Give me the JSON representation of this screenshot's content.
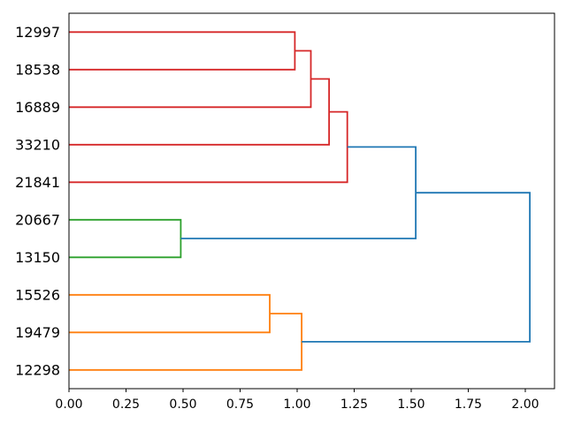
{
  "figure": {
    "background": "#ffffff",
    "border_color": "#000000"
  },
  "chart_data": {
    "type": "dendrogram",
    "orientation": "left",
    "title": "",
    "xlabel": "",
    "ylabel": "",
    "grid": false,
    "legend": false,
    "leaves": [
      "12997",
      "18538",
      "16889",
      "33210",
      "21841",
      "20667",
      "13150",
      "15526",
      "19479",
      "12298"
    ],
    "merges": [
      {
        "id": "m0",
        "a": 0,
        "b": 1,
        "height": 0.99,
        "color": "red"
      },
      {
        "id": "m1",
        "a": "m0",
        "b": 2,
        "height": 1.06,
        "color": "red"
      },
      {
        "id": "m2",
        "a": "m1",
        "b": 3,
        "height": 1.14,
        "color": "red"
      },
      {
        "id": "m3",
        "a": "m2",
        "b": 4,
        "height": 1.22,
        "color": "red"
      },
      {
        "id": "m4",
        "a": 5,
        "b": 6,
        "height": 0.49,
        "color": "green"
      },
      {
        "id": "m5",
        "a": "m3",
        "b": "m4",
        "height": 1.52,
        "color": "blue"
      },
      {
        "id": "m6",
        "a": 7,
        "b": 8,
        "height": 0.88,
        "color": "orange"
      },
      {
        "id": "m7",
        "a": "m6",
        "b": 9,
        "height": 1.02,
        "color": "orange"
      },
      {
        "id": "m8",
        "a": "m5",
        "b": "m7",
        "height": 2.02,
        "color": "blue"
      }
    ],
    "colors": {
      "blue": "#1f77b4",
      "orange": "#ff7f0e",
      "green": "#2ca02c",
      "red": "#d62728"
    },
    "x_ticks": [
      {
        "value": 0.0,
        "label": "0.00"
      },
      {
        "value": 0.25,
        "label": "0.25"
      },
      {
        "value": 0.5,
        "label": "0.50"
      },
      {
        "value": 0.75,
        "label": "0.75"
      },
      {
        "value": 1.0,
        "label": "1.00"
      },
      {
        "value": 1.25,
        "label": "1.25"
      },
      {
        "value": 1.5,
        "label": "1.50"
      },
      {
        "value": 1.75,
        "label": "1.75"
      },
      {
        "value": 2.0,
        "label": "2.00"
      }
    ],
    "xlim": [
      0,
      2.128
    ],
    "ylim": [
      0,
      100
    ],
    "line_width": 1.8,
    "axis_color": "#000000",
    "text_color": "#000000"
  }
}
